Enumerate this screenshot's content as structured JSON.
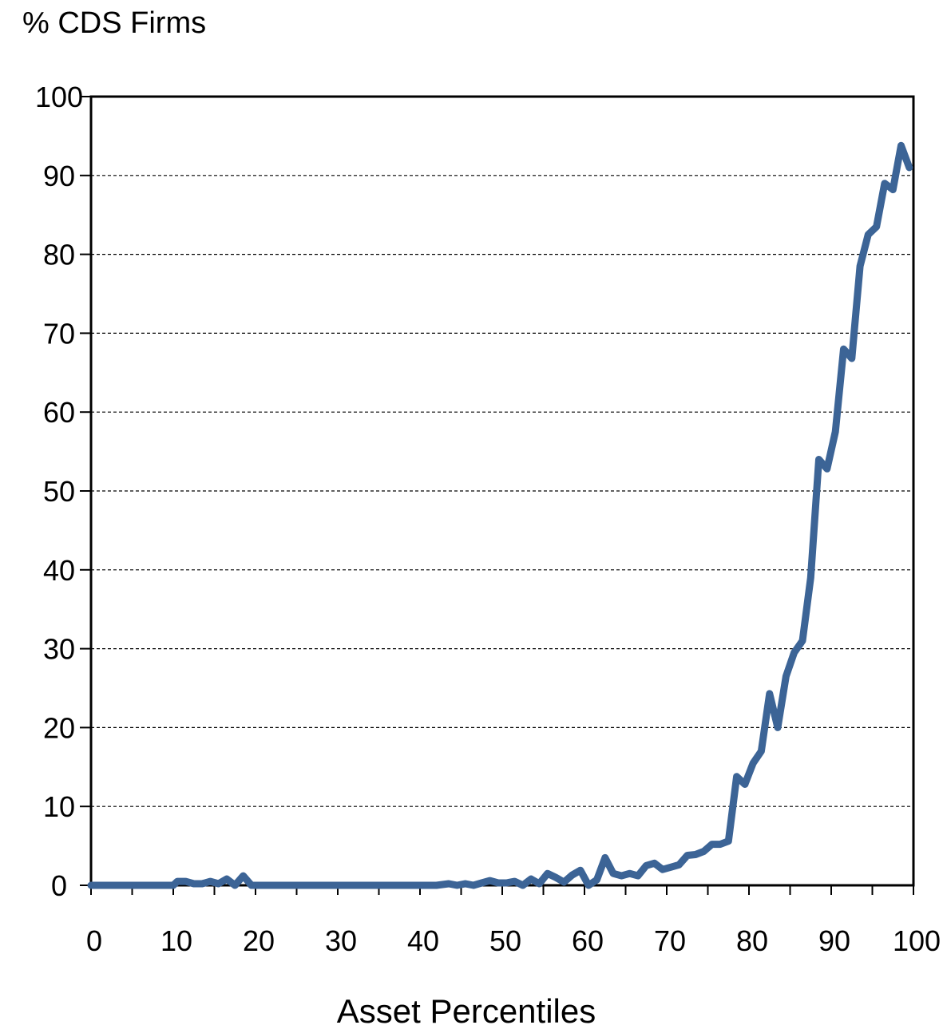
{
  "chart_data": {
    "type": "line",
    "ylabel": "% CDS Firms",
    "xlabel": "Asset Percentiles",
    "xlim": [
      0,
      100
    ],
    "ylim": [
      0,
      100
    ],
    "x_ticks": [
      0,
      10,
      20,
      30,
      40,
      50,
      60,
      70,
      80,
      90,
      100
    ],
    "y_ticks": [
      0,
      10,
      20,
      30,
      40,
      50,
      60,
      70,
      80,
      90,
      100
    ],
    "grid": "horizontal-dashed",
    "line_color": "#3c6496",
    "series": [
      {
        "values": [
          [
            0,
            0
          ],
          [
            1,
            0
          ],
          [
            2,
            0
          ],
          [
            3,
            0
          ],
          [
            4,
            0
          ],
          [
            5,
            0
          ],
          [
            6,
            0
          ],
          [
            7,
            0
          ],
          [
            8,
            0
          ],
          [
            9,
            0
          ],
          [
            10,
            0
          ],
          [
            10.5,
            0.5
          ],
          [
            11.5,
            0.5
          ],
          [
            12.5,
            0.2
          ],
          [
            13.5,
            0.2
          ],
          [
            14.5,
            0.5
          ],
          [
            15.5,
            0.2
          ],
          [
            16.5,
            0.8
          ],
          [
            17.5,
            0
          ],
          [
            18.5,
            1.2
          ],
          [
            19.5,
            0
          ],
          [
            20,
            0
          ],
          [
            25,
            0
          ],
          [
            30,
            0
          ],
          [
            35,
            0
          ],
          [
            40,
            0
          ],
          [
            42,
            0
          ],
          [
            43.5,
            0.2
          ],
          [
            44.5,
            0
          ],
          [
            45.5,
            0.2
          ],
          [
            46.5,
            0
          ],
          [
            47.5,
            0.3
          ],
          [
            48.5,
            0.6
          ],
          [
            49.5,
            0.3
          ],
          [
            50.5,
            0.3
          ],
          [
            51.5,
            0.5
          ],
          [
            52.5,
            0
          ],
          [
            53.5,
            0.8
          ],
          [
            54.5,
            0.2
          ],
          [
            55.5,
            1.5
          ],
          [
            56.5,
            1
          ],
          [
            57.5,
            0.4
          ],
          [
            58.5,
            1.3
          ],
          [
            59.5,
            1.9
          ],
          [
            60.5,
            0
          ],
          [
            61.5,
            0.7
          ],
          [
            62.5,
            3.5
          ],
          [
            63.5,
            1.5
          ],
          [
            64.5,
            1.2
          ],
          [
            65.5,
            1.5
          ],
          [
            66.5,
            1.2
          ],
          [
            67.5,
            2.5
          ],
          [
            68.5,
            2.8
          ],
          [
            69.5,
            2
          ],
          [
            70.5,
            2.3
          ],
          [
            71.5,
            2.6
          ],
          [
            72.5,
            3.8
          ],
          [
            73.5,
            3.9
          ],
          [
            74.5,
            4.3
          ],
          [
            75.5,
            5.2
          ],
          [
            76.5,
            5.2
          ],
          [
            77.5,
            5.6
          ],
          [
            78.5,
            13.8
          ],
          [
            79.5,
            12.8
          ],
          [
            80.5,
            15.5
          ],
          [
            81.5,
            17
          ],
          [
            82.5,
            24.3
          ],
          [
            83.5,
            20
          ],
          [
            84.5,
            26.5
          ],
          [
            85.5,
            29.5
          ],
          [
            86.5,
            31
          ],
          [
            87.5,
            39
          ],
          [
            88.5,
            54
          ],
          [
            89.5,
            52.8
          ],
          [
            90.5,
            57.5
          ],
          [
            91.5,
            68
          ],
          [
            92.5,
            66.8
          ],
          [
            93.5,
            78.5
          ],
          [
            94.5,
            82.5
          ],
          [
            95.5,
            83.5
          ],
          [
            96.5,
            89
          ],
          [
            97.5,
            88.2
          ],
          [
            98.5,
            93.8
          ],
          [
            99.5,
            91
          ]
        ]
      }
    ]
  }
}
